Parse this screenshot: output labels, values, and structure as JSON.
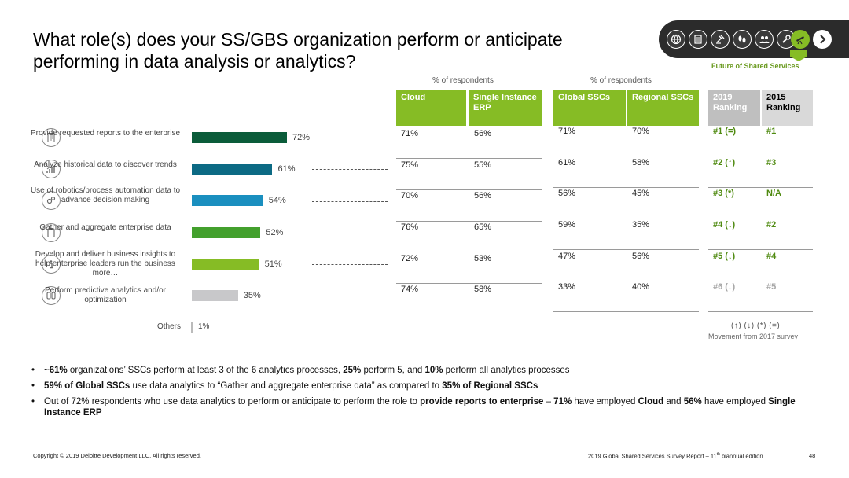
{
  "title": "What role(s) does your SS/GBS organization perform or anticipate performing in data analysis or analytics?",
  "brand_label": "Future of Shared Services",
  "nav_icons": [
    "globe-icon",
    "clipboard-icon",
    "gavel-icon",
    "footsteps-icon",
    "users-icon",
    "wrench-icon",
    "telescope-icon",
    "next-arrow-icon"
  ],
  "respondents_label_1": "% of respondents",
  "respondents_label_2": "% of respondents",
  "chart_data": {
    "type": "bar",
    "orientation": "horizontal",
    "categories": [
      "Provide requested reports to the enterprise",
      "Analyze historical data to discover trends",
      "Use of robotics/process automation data to advance decision making",
      "Gather and aggregate enterprise data",
      "Develop and deliver business insights to help enterprise leaders run the business more…",
      "Perform predictive analytics and/or optimization",
      "Others"
    ],
    "values": [
      72,
      61,
      54,
      52,
      51,
      35,
      1
    ],
    "value_labels": [
      "72%",
      "61%",
      "54%",
      "52%",
      "51%",
      "35%",
      "1%"
    ],
    "colors": [
      "#0b5c3a",
      "#0c6a84",
      "#1a8fbf",
      "#43a02d",
      "#86bc25",
      "#c8c8ca",
      "#bbbbbb"
    ],
    "xlim": [
      0,
      100
    ]
  },
  "table_deploy": {
    "headers": [
      "Cloud",
      "Single Instance ERP"
    ],
    "rows": [
      [
        "71%",
        "56%"
      ],
      [
        "75%",
        "55%"
      ],
      [
        "70%",
        "56%"
      ],
      [
        "76%",
        "65%"
      ],
      [
        "72%",
        "53%"
      ],
      [
        "74%",
        "58%"
      ]
    ]
  },
  "table_ssc": {
    "headers": [
      "Global SSCs",
      "Regional SSCs"
    ],
    "rows": [
      [
        "71%",
        "70%"
      ],
      [
        "61%",
        "58%"
      ],
      [
        "56%",
        "45%"
      ],
      [
        "59%",
        "35%"
      ],
      [
        "47%",
        "56%"
      ],
      [
        "33%",
        "40%"
      ]
    ]
  },
  "table_rank": {
    "headers": [
      "2019 Ranking",
      "2015 Ranking"
    ],
    "rows": [
      [
        "#1 (=)",
        "#1"
      ],
      [
        "#2 (↑)",
        "#3"
      ],
      [
        "#3 (*)",
        "N/A"
      ],
      [
        "#4 (↓)",
        "#2"
      ],
      [
        "#5 (↓)",
        "#4"
      ],
      [
        "#6 (↓)",
        "#5"
      ]
    ]
  },
  "legend": {
    "symbols": "(↑) (↓) (*) (=)",
    "note": "Movement from 2017 survey"
  },
  "bullets": [
    {
      "parts": [
        {
          "b": true,
          "t": "~61%"
        },
        {
          "b": false,
          "t": " organizations’ SSCs perform at least 3 of the 6 analytics processes, "
        },
        {
          "b": true,
          "t": "25%"
        },
        {
          "b": false,
          "t": " perform 5, and "
        },
        {
          "b": true,
          "t": "10%"
        },
        {
          "b": false,
          "t": " perform all analytics processes"
        }
      ]
    },
    {
      "parts": [
        {
          "b": true,
          "t": "59% of Global SSCs"
        },
        {
          "b": false,
          "t": " use data analytics to “Gather and aggregate enterprise data” as compared to "
        },
        {
          "b": true,
          "t": "35% of Regional SSCs"
        }
      ]
    },
    {
      "parts": [
        {
          "b": false,
          "t": "Out of 72% respondents who use data analytics to perform or anticipate to perform the role to "
        },
        {
          "b": true,
          "t": "provide reports to enterprise"
        },
        {
          "b": false,
          "t": " – "
        },
        {
          "b": true,
          "t": "71%"
        },
        {
          "b": false,
          "t": " have employed "
        },
        {
          "b": true,
          "t": "Cloud"
        },
        {
          "b": false,
          "t": " and "
        },
        {
          "b": true,
          "t": "56%"
        },
        {
          "b": false,
          "t": " have employed "
        },
        {
          "b": true,
          "t": "Single Instance ERP"
        }
      ]
    }
  ],
  "footer": {
    "copyright": "Copyright © 2019 Deloitte Development LLC. All rights reserved.",
    "report_prefix": "2019 Global Shared Services Survey Report – 11",
    "report_sup": "th",
    "report_suffix": " biannual edition",
    "page": "48"
  }
}
